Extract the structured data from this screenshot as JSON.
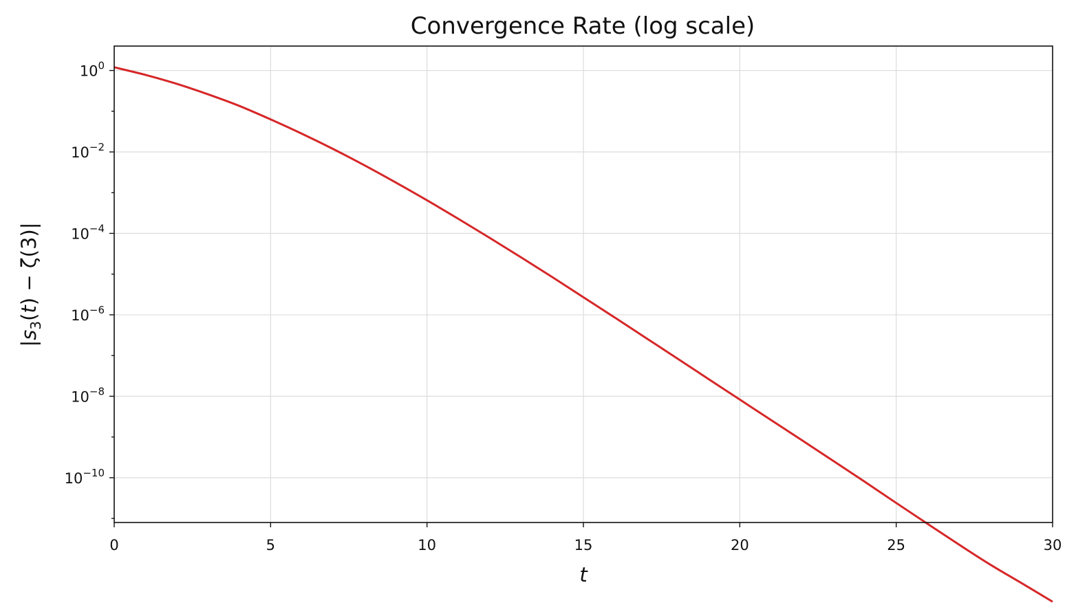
{
  "chart_data": {
    "type": "line",
    "title": "Convergence Rate (log scale)",
    "xlabel": "t",
    "ylabel_parts": [
      "|s",
      "3",
      "(",
      "t",
      ") − ζ(3)|"
    ],
    "xlim": [
      0,
      30
    ],
    "ylim_log10": [
      -11.1,
      0.6
    ],
    "y_scale": "log",
    "grid": true,
    "x_ticks": [
      {
        "value": 0,
        "label": "0"
      },
      {
        "value": 5,
        "label": "5"
      },
      {
        "value": 10,
        "label": "10"
      },
      {
        "value": 15,
        "label": "15"
      },
      {
        "value": 20,
        "label": "20"
      },
      {
        "value": 25,
        "label": "25"
      },
      {
        "value": 30,
        "label": "30"
      }
    ],
    "y_ticks": [
      {
        "log10": 0,
        "base": "10",
        "exponent": "0"
      },
      {
        "log10": -2,
        "base": "10",
        "exponent": "−2"
      },
      {
        "log10": -4,
        "base": "10",
        "exponent": "−4"
      },
      {
        "log10": -6,
        "base": "10",
        "exponent": "−6"
      },
      {
        "log10": -8,
        "base": "10",
        "exponent": "−8"
      },
      {
        "log10": -10,
        "base": "10",
        "exponent": "−10"
      }
    ],
    "series": [
      {
        "color": "#d62728",
        "x": [
          0,
          1,
          2,
          3,
          4,
          5,
          6,
          7,
          8,
          9,
          10,
          11,
          12,
          13,
          14,
          15,
          16,
          17,
          18,
          19,
          20,
          21,
          22,
          23,
          24,
          25,
          26,
          27,
          28,
          29,
          30
        ],
        "y": [
          1.2,
          0.78,
          0.47,
          0.26,
          0.135,
          0.063,
          0.028,
          0.0118,
          0.0047,
          0.00178,
          0.00065,
          0.000228,
          7.8e-05,
          2.6e-05,
          8.5e-06,
          2.7e-06,
          8.6e-07,
          2.7e-07,
          8.5e-08,
          2.65e-08,
          8.3e-09,
          2.6e-09,
          8.2e-10,
          2.55e-10,
          7.9e-11,
          2.4e-11,
          7.4e-12,
          2.3e-12,
          7.4e-13,
          2.6e-13,
          9e-14
        ]
      }
    ]
  }
}
